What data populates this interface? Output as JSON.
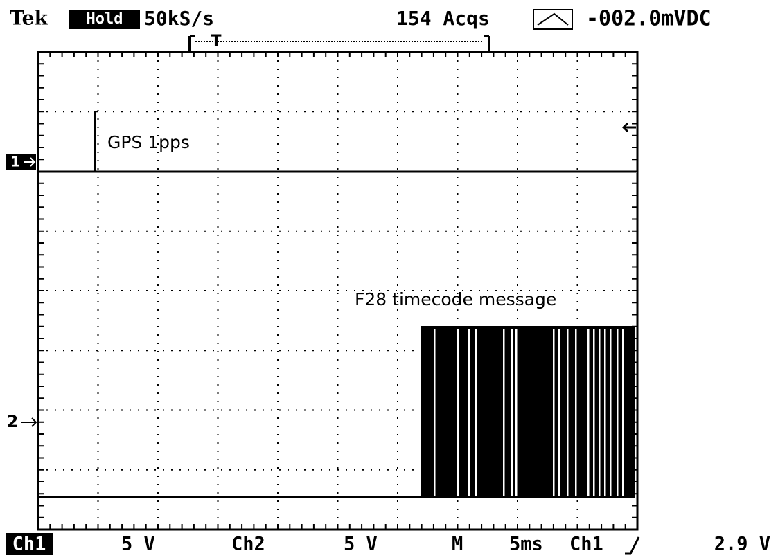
{
  "header": {
    "brand": "Tek",
    "mode": "Hold",
    "sample_rate": "50kS/s",
    "acquisitions": "154 Acqs",
    "trigger_marker": "T",
    "readout": "-002.0mVDC"
  },
  "channel_markers": [
    "1",
    "2"
  ],
  "annotations": [
    "GPS 1pps",
    "F28 timecode message"
  ],
  "footer": {
    "ch1_label": "Ch1",
    "ch1_scale": "5 V",
    "ch2_label": "Ch2",
    "ch2_scale": "5 V",
    "timebase_label": "M",
    "timebase": "5ms",
    "trigger_source": "Ch1",
    "trigger_level": "2.9 V"
  }
}
